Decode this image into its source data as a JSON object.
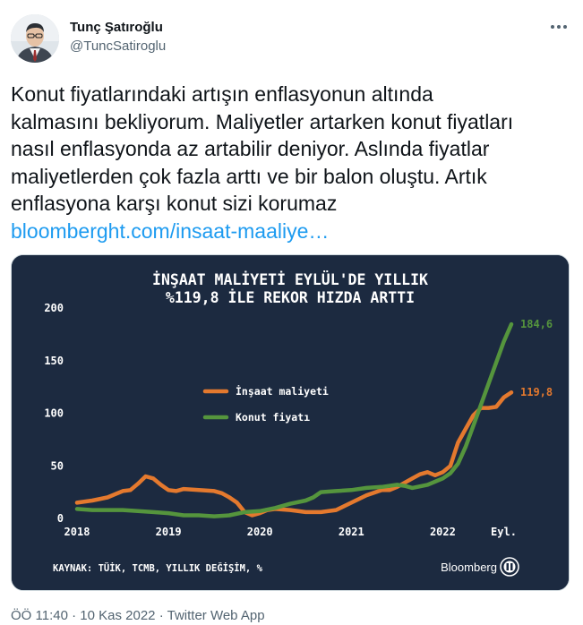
{
  "author": {
    "display_name": "Tunç Şatıroğlu",
    "handle": "@TuncSatiroglu",
    "avatar_icon": "user-avatar"
  },
  "menu_icon": "more-icon",
  "tweet": {
    "lines": [
      "Konut fiyatlarındaki artışın enflasyonun altında",
      "kalmasını bekliyorum. Maliyetler artarken konut fiyatları",
      "nasıl enflasyonda az artabilir deniyor. Aslında fiyatlar",
      "maliyetlerden çok fazla arttı ve bir balon oluştu. Artık",
      "enflasyona karşı konut sizi korumaz"
    ],
    "link": "bloomberght.com/insaat-maaliye…"
  },
  "footer": {
    "time": "ÖÖ 11:40",
    "date": "10 Kas 2022",
    "source": "Twitter Web App",
    "separator": "·"
  },
  "chart_data": {
    "type": "line",
    "title_lines": [
      "İNŞAAT MALİYETİ EYLÜL'DE YILLIK",
      "%119,8 İLE REKOR HIZDA ARTTI"
    ],
    "x_tick_labels": [
      "2018",
      "2019",
      "2020",
      "2021",
      "2022",
      "Eyl."
    ],
    "y_ticks": [
      0,
      50,
      100,
      150,
      200
    ],
    "ylim": [
      0,
      200
    ],
    "xlim": [
      0,
      57
    ],
    "legend_position": "center",
    "source_note": "KAYNAK: TÜİK, TCMB, YILLIK DEĞİŞİM, %",
    "brand": "Bloomberg",
    "grid": false,
    "background": "#1c2a40",
    "series": [
      {
        "name": "İnşaat maliyeti",
        "color": "#e4792e",
        "end_label": "119,8",
        "points": [
          [
            0,
            15
          ],
          [
            2,
            17
          ],
          [
            4,
            20
          ],
          [
            6,
            26
          ],
          [
            7,
            27
          ],
          [
            8,
            33
          ],
          [
            9,
            40
          ],
          [
            10,
            38
          ],
          [
            11,
            32
          ],
          [
            12,
            27
          ],
          [
            13,
            26
          ],
          [
            14,
            28
          ],
          [
            16,
            27
          ],
          [
            18,
            26
          ],
          [
            19,
            24
          ],
          [
            20,
            20
          ],
          [
            21,
            15
          ],
          [
            22,
            6
          ],
          [
            23,
            3
          ],
          [
            24,
            5
          ],
          [
            25,
            8
          ],
          [
            26,
            9
          ],
          [
            28,
            8
          ],
          [
            30,
            6
          ],
          [
            32,
            6
          ],
          [
            34,
            8
          ],
          [
            36,
            15
          ],
          [
            38,
            22
          ],
          [
            40,
            27
          ],
          [
            41,
            27
          ],
          [
            42,
            30
          ],
          [
            44,
            38
          ],
          [
            45,
            42
          ],
          [
            46,
            44
          ],
          [
            47,
            41
          ],
          [
            48,
            44
          ],
          [
            49,
            50
          ],
          [
            50,
            72
          ],
          [
            51,
            85
          ],
          [
            52,
            98
          ],
          [
            53,
            105
          ],
          [
            54,
            105
          ],
          [
            55,
            106
          ],
          [
            56,
            115
          ],
          [
            57,
            119.8
          ]
        ]
      },
      {
        "name": "Konut fiyatı",
        "color": "#55953d",
        "end_label": "184,6",
        "points": [
          [
            0,
            9
          ],
          [
            2,
            8
          ],
          [
            4,
            8
          ],
          [
            6,
            8
          ],
          [
            8,
            7
          ],
          [
            10,
            6
          ],
          [
            12,
            5
          ],
          [
            14,
            3
          ],
          [
            16,
            3
          ],
          [
            18,
            2
          ],
          [
            20,
            3
          ],
          [
            22,
            6
          ],
          [
            24,
            7
          ],
          [
            26,
            10
          ],
          [
            28,
            14
          ],
          [
            30,
            17
          ],
          [
            31,
            20
          ],
          [
            32,
            25
          ],
          [
            34,
            26
          ],
          [
            36,
            27
          ],
          [
            38,
            29
          ],
          [
            40,
            30
          ],
          [
            42,
            32
          ],
          [
            43,
            31
          ],
          [
            44,
            29
          ],
          [
            46,
            32
          ],
          [
            48,
            38
          ],
          [
            49,
            43
          ],
          [
            50,
            52
          ],
          [
            51,
            68
          ],
          [
            52,
            88
          ],
          [
            53,
            108
          ],
          [
            54,
            128
          ],
          [
            55,
            148
          ],
          [
            56,
            168
          ],
          [
            57,
            184.6
          ]
        ]
      }
    ]
  }
}
